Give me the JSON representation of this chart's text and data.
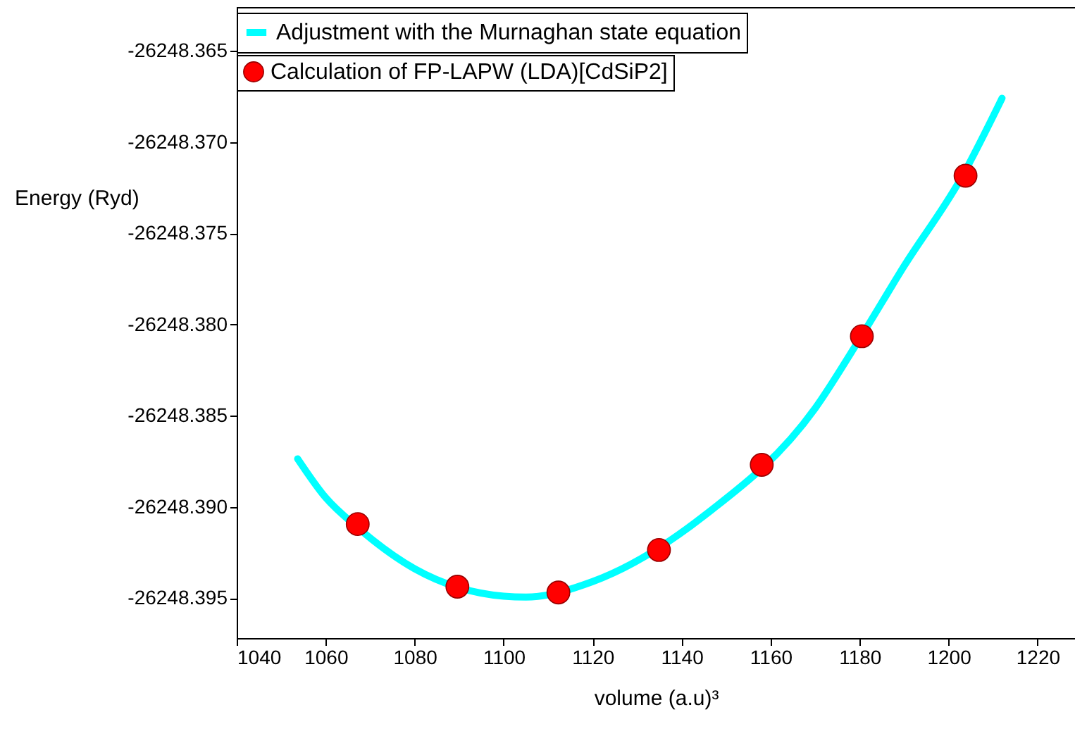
{
  "chart_data": {
    "type": "scatter",
    "xlabel": "volume (a.u)³",
    "ylabel": "Energy (Ryd)",
    "xlim": [
      1040,
      1228.4
    ],
    "ylim": [
      -26248.3972,
      -26248.3626
    ],
    "xticks": [
      1040,
      1060,
      1080,
      1100,
      1120,
      1140,
      1160,
      1180,
      1200,
      1220
    ],
    "yticks": [
      {
        "value": -26248.395,
        "label": "-26248.395"
      },
      {
        "value": -26248.39,
        "label": "-26248.390"
      },
      {
        "value": -26248.385,
        "label": "-26248.385"
      },
      {
        "value": -26248.38,
        "label": "-26248.380"
      },
      {
        "value": -26248.375,
        "label": "-26248.375"
      },
      {
        "value": -26248.37,
        "label": "-26248.370"
      },
      {
        "value": -26248.365,
        "label": "-26248.365"
      }
    ],
    "grid": false,
    "legend": "top",
    "series": [
      {
        "name": "Adjustment with the Murnaghan state equation",
        "type": "line",
        "color": "#00ffff",
        "marker": "none",
        "line_style": "solid",
        "x": [
          1053.7,
          1060,
          1067,
          1080,
          1100,
          1105,
          1120,
          1145,
          1170,
          1180,
          1190,
          1203,
          1212
        ],
        "values": [
          -26248.38737,
          -26248.3895,
          -26248.3911,
          -26248.3934,
          -26248.3949,
          -26248.39495,
          -26248.3941,
          -26248.3905,
          -26248.3846,
          -26248.3808,
          -26248.3768,
          -26248.3719,
          -26248.3676
        ]
      },
      {
        "name": "Calculation of FP-LAPW (LDA)[CdSiP2]",
        "color": "#ff0000",
        "marker": "circle",
        "x": [
          1067.2,
          1089.6,
          1112.3,
          1134.9,
          1158,
          1180.5,
          1203.8
        ],
        "values": [
          -26248.39095,
          -26248.39438,
          -26248.3947,
          -26248.39237,
          -26248.3877,
          -26248.38065,
          -26248.37185
        ]
      }
    ]
  }
}
